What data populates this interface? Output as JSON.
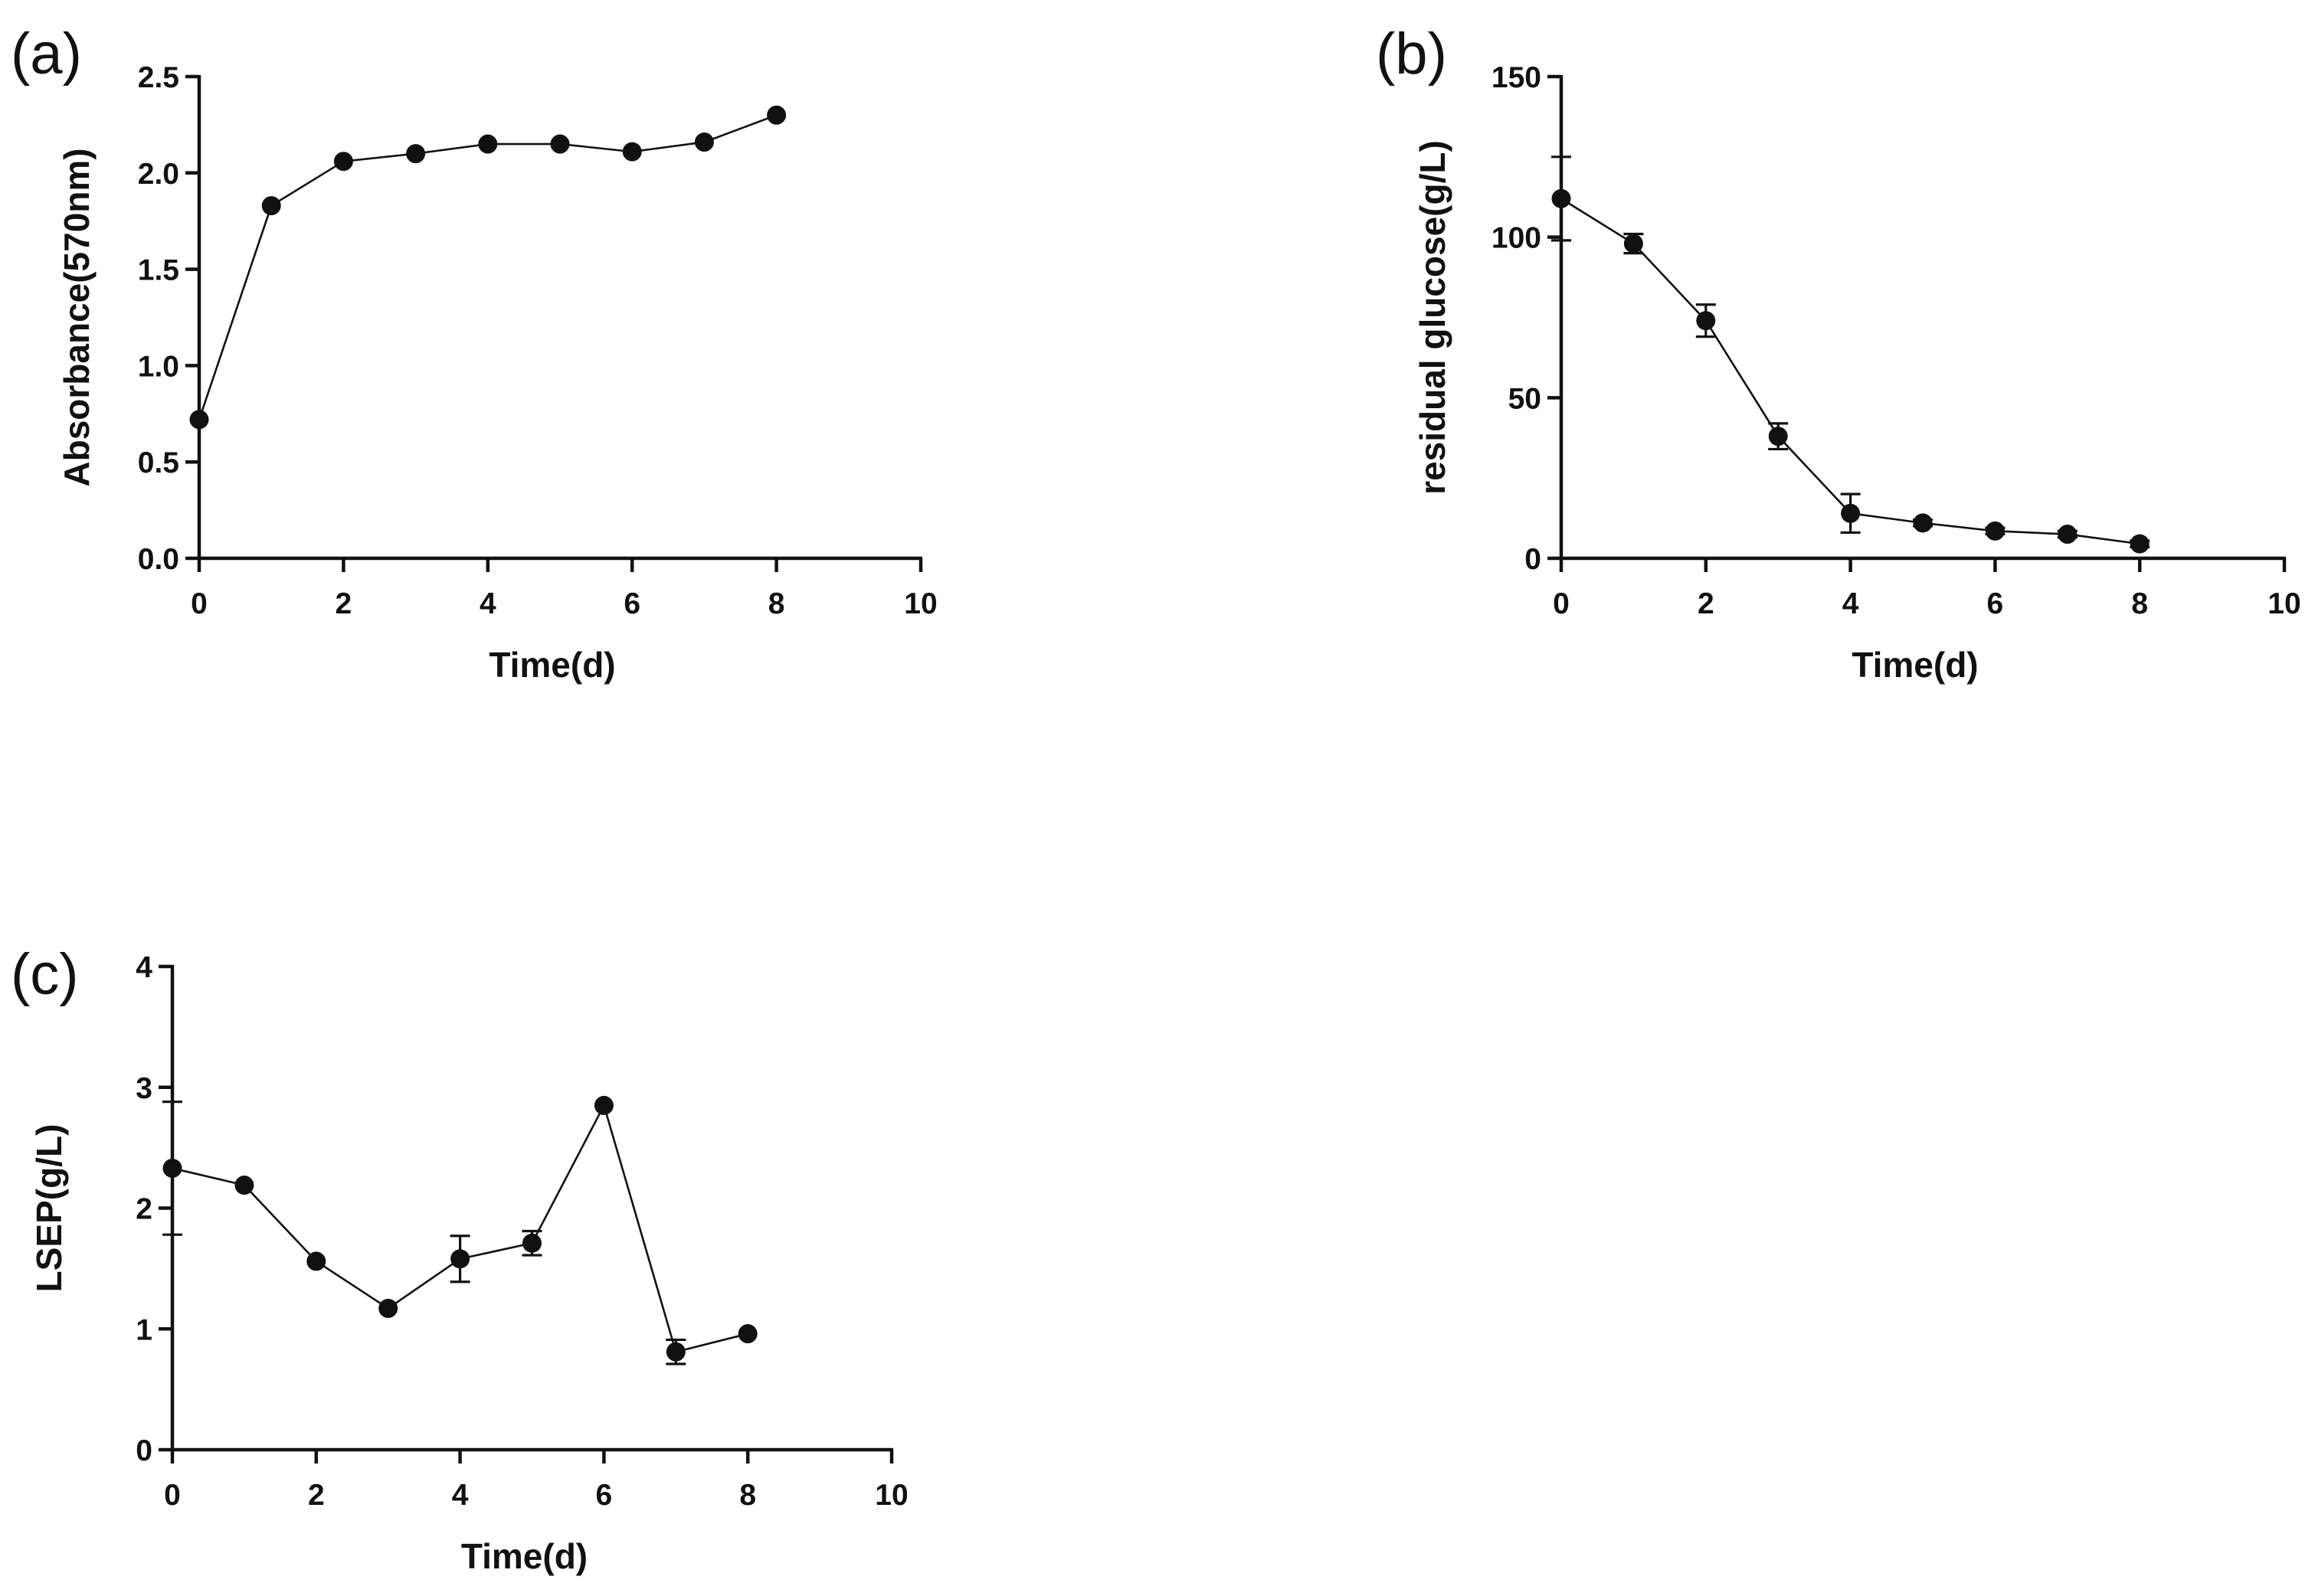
{
  "chart_data": [
    {
      "type": "line",
      "panel_label": "(a)",
      "title": "",
      "xlabel": "Time(d)",
      "ylabel": "Absorbance(570nm)",
      "xlim": [
        0,
        10
      ],
      "ylim": [
        0,
        2.5
      ],
      "xticks": [
        0,
        2,
        4,
        6,
        8,
        10
      ],
      "yticks": [
        0.0,
        0.5,
        1.0,
        1.5,
        2.0,
        2.5
      ],
      "xtick_labels": [
        "0",
        "2",
        "4",
        "6",
        "8",
        "10"
      ],
      "ytick_labels": [
        "0.0",
        "0.5",
        "1.0",
        "1.5",
        "2.0",
        "2.5"
      ],
      "grid": false,
      "series": [
        {
          "name": "Absorbance",
          "x": [
            0,
            1,
            2,
            3,
            4,
            5,
            6,
            7,
            8
          ],
          "values": [
            0.72,
            1.83,
            2.06,
            2.1,
            2.15,
            2.15,
            2.11,
            2.16,
            2.3
          ],
          "errors": [
            0,
            0,
            0,
            0,
            0,
            0,
            0,
            0,
            0
          ]
        }
      ]
    },
    {
      "type": "line",
      "panel_label": "(b)",
      "title": "",
      "xlabel": "Time(d)",
      "ylabel": "residual glucose(g/L)",
      "xlim": [
        0,
        10
      ],
      "ylim": [
        0,
        150
      ],
      "xticks": [
        0,
        2,
        4,
        6,
        8,
        10
      ],
      "yticks": [
        0,
        50,
        100,
        150
      ],
      "xtick_labels": [
        "0",
        "2",
        "4",
        "6",
        "8",
        "10"
      ],
      "ytick_labels": [
        "0",
        "50",
        "100",
        "150"
      ],
      "grid": false,
      "series": [
        {
          "name": "residual glucose",
          "x": [
            0,
            1,
            2,
            3,
            4,
            5,
            6,
            7,
            8
          ],
          "values": [
            112,
            98,
            74,
            38,
            14,
            11,
            8.5,
            7.5,
            4.5
          ],
          "errors": [
            13,
            3,
            5,
            4,
            6,
            1,
            1,
            1,
            1
          ]
        }
      ]
    },
    {
      "type": "line",
      "panel_label": "(c)",
      "title": "",
      "xlabel": "Time(d)",
      "ylabel": "LSEP(g/L)",
      "xlim": [
        0,
        10
      ],
      "ylim": [
        0,
        4
      ],
      "xticks": [
        0,
        2,
        4,
        6,
        8,
        10
      ],
      "yticks": [
        0,
        1,
        2,
        3,
        4
      ],
      "xtick_labels": [
        "0",
        "2",
        "4",
        "6",
        "8",
        "10"
      ],
      "ytick_labels": [
        "0",
        "1",
        "2",
        "3",
        "4"
      ],
      "grid": false,
      "series": [
        {
          "name": "LSEP",
          "x": [
            0,
            1,
            2,
            3,
            4,
            5,
            6,
            7,
            8
          ],
          "values": [
            2.33,
            2.19,
            1.56,
            1.17,
            1.58,
            1.71,
            2.85,
            0.81,
            0.96
          ],
          "errors": [
            0.55,
            0,
            0,
            0,
            0.19,
            0.1,
            0,
            0.1,
            0
          ]
        }
      ]
    }
  ]
}
